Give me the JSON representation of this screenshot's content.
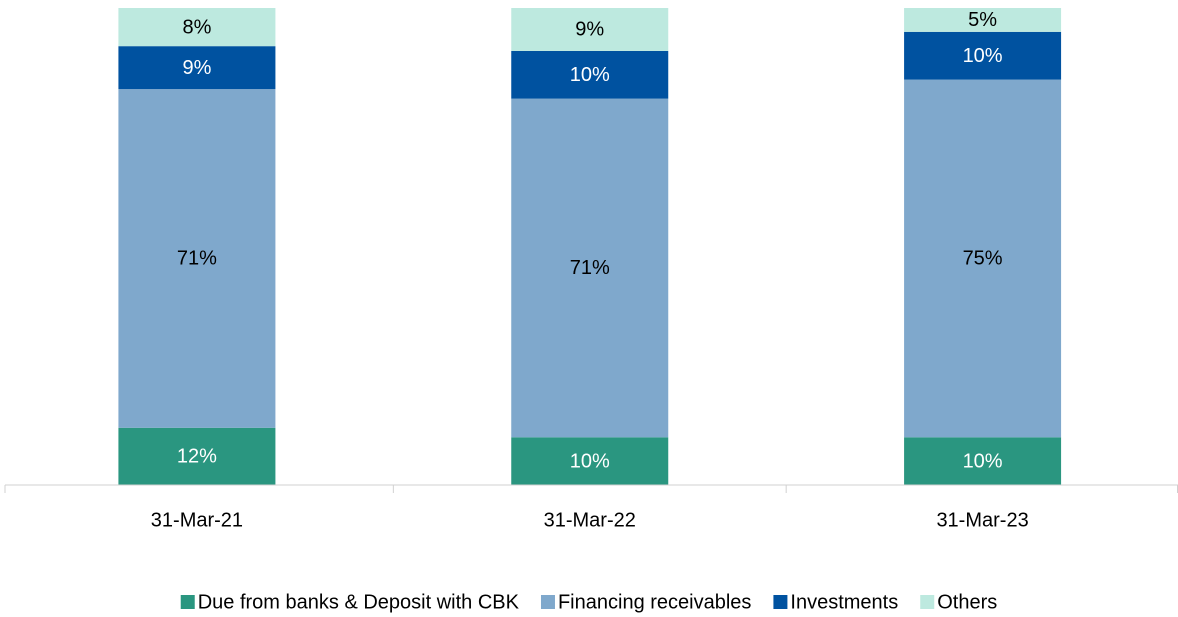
{
  "chart_data": {
    "type": "stacked_bar",
    "categories": [
      "31-Mar-21",
      "31-Mar-22",
      "31-Mar-23"
    ],
    "series": [
      {
        "name": "Due from banks & Deposit with CBK",
        "color": "#2a9680",
        "label_color": "#ffffff",
        "values": [
          12,
          10,
          10
        ],
        "value_labels": [
          "12%",
          "10%",
          "10%"
        ]
      },
      {
        "name": "Financing receivables",
        "color": "#7fa8cc",
        "label_color": "#000000",
        "values": [
          71,
          71,
          75
        ],
        "value_labels": [
          "71%",
          "71%",
          "75%"
        ]
      },
      {
        "name": "Investments",
        "color": "#0052a0",
        "label_color": "#ffffff",
        "values": [
          9,
          10,
          10
        ],
        "value_labels": [
          "9%",
          "10%",
          "10%"
        ]
      },
      {
        "name": "Others",
        "color": "#bde9df",
        "label_color": "#000000",
        "values": [
          8,
          9,
          5
        ],
        "value_labels": [
          "8%",
          "9%",
          "5%"
        ]
      }
    ],
    "legend": "bottom"
  }
}
